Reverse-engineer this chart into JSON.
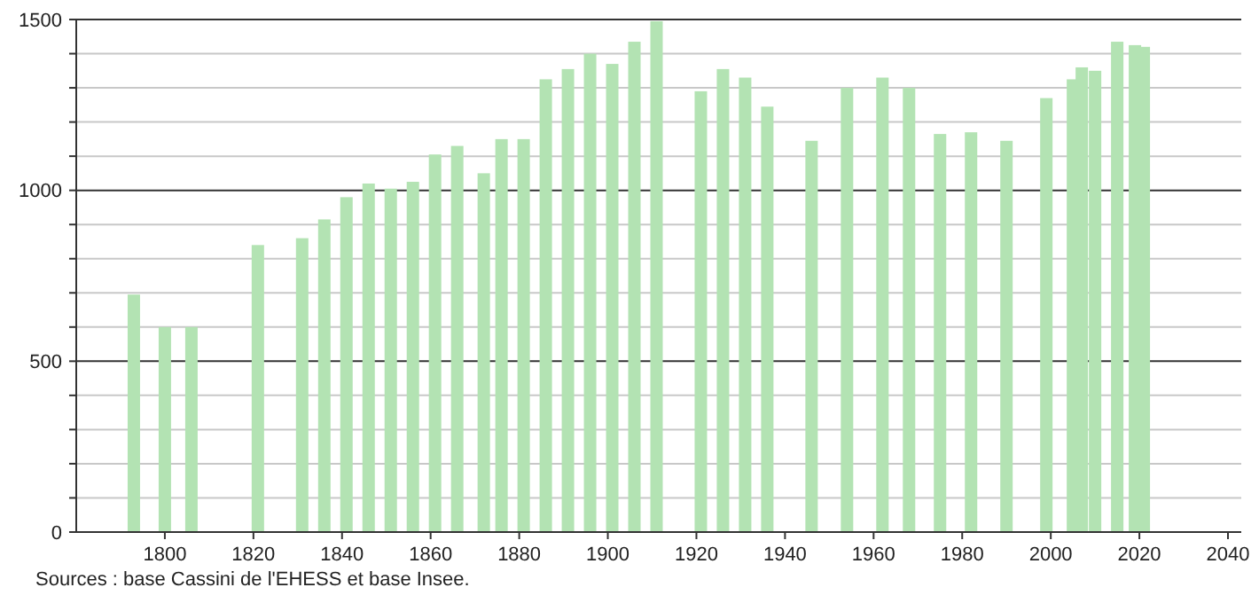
{
  "chart_data": {
    "type": "bar",
    "color": "#b3e3b3",
    "x": [
      1793,
      1800,
      1806,
      1821,
      1831,
      1836,
      1841,
      1846,
      1851,
      1856,
      1861,
      1866,
      1872,
      1876,
      1881,
      1886,
      1891,
      1896,
      1901,
      1906,
      1911,
      1921,
      1926,
      1931,
      1936,
      1946,
      1954,
      1962,
      1968,
      1975,
      1982,
      1990,
      1999,
      2005,
      2007,
      2010,
      2015,
      2019,
      2021
    ],
    "values": [
      695,
      600,
      600,
      840,
      860,
      915,
      980,
      1020,
      1005,
      1025,
      1105,
      1130,
      1050,
      1150,
      1150,
      1325,
      1355,
      1400,
      1370,
      1435,
      1495,
      1290,
      1355,
      1330,
      1245,
      1145,
      1300,
      1330,
      1300,
      1165,
      1170,
      1145,
      1270,
      1325,
      1360,
      1350,
      1435,
      1425,
      1420
    ],
    "xlim": [
      1780,
      2043
    ],
    "xticks": [
      1800,
      1820,
      1840,
      1860,
      1880,
      1900,
      1920,
      1940,
      1960,
      1980,
      2000,
      2020,
      2040
    ],
    "ylim": [
      0,
      1500
    ],
    "yticks": [
      0,
      {
        "value": 100,
        "label": null
      },
      {
        "value": 200,
        "label": null
      },
      {
        "value": 300,
        "label": null
      },
      {
        "value": 400,
        "label": null
      },
      500,
      {
        "value": 600,
        "label": null
      },
      {
        "value": 700,
        "label": null
      },
      {
        "value": 800,
        "label": null
      },
      {
        "value": 900,
        "label": null
      },
      1000,
      {
        "value": 1100,
        "label": null
      },
      {
        "value": 1200,
        "label": null
      },
      {
        "value": 1300,
        "label": null
      },
      {
        "value": 1400,
        "label": null
      },
      1500
    ],
    "grid": "y",
    "annotations": [
      "Sources : base Cassini de l'EHESS et base Insee."
    ]
  }
}
